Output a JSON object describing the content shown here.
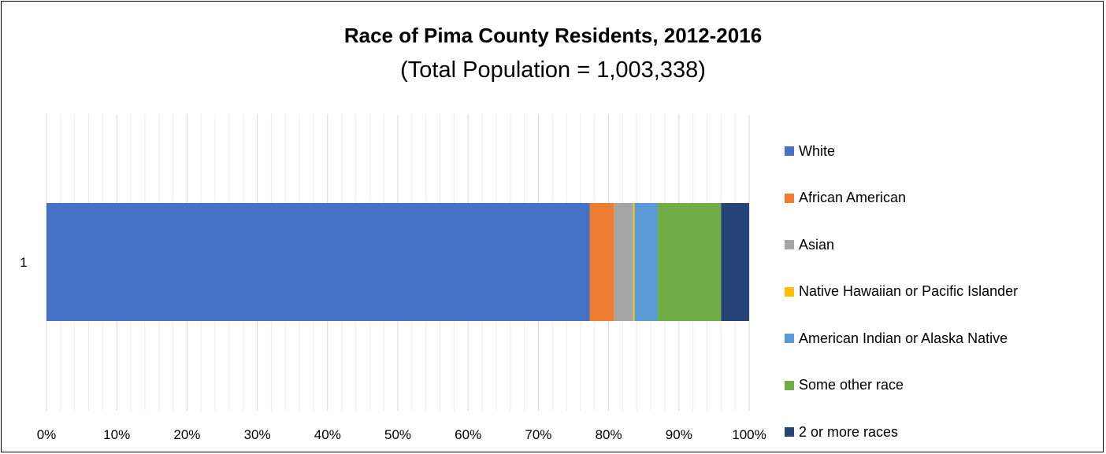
{
  "chart_data": {
    "type": "bar",
    "orientation": "horizontal",
    "stacked": "100%",
    "title": "Race of Pima County Residents, 2012-2016",
    "subtitle": "(Total Population = 1,003,338)",
    "categories": [
      "1"
    ],
    "x_tick_labels": [
      "0%",
      "10%",
      "20%",
      "30%",
      "40%",
      "50%",
      "60%",
      "70%",
      "80%",
      "90%",
      "100%"
    ],
    "xlim": [
      0,
      100
    ],
    "grid": true,
    "legend_position": "right",
    "series": [
      {
        "name": "White",
        "values": [
          77.3
        ],
        "color": "#4472C4"
      },
      {
        "name": "African American",
        "values": [
          3.5
        ],
        "color": "#ED7D31"
      },
      {
        "name": "Asian",
        "values": [
          2.7
        ],
        "color": "#A5A5A5"
      },
      {
        "name": "Native Hawaiian or Pacific Islander",
        "values": [
          0.2
        ],
        "color": "#FFC000"
      },
      {
        "name": "American Indian or Alaska Native",
        "values": [
          3.3
        ],
        "color": "#5B9BD5"
      },
      {
        "name": "Some other race",
        "values": [
          9.0
        ],
        "color": "#70AD47"
      },
      {
        "name": "2 or more races",
        "values": [
          4.0
        ],
        "color": "#264478"
      }
    ]
  }
}
